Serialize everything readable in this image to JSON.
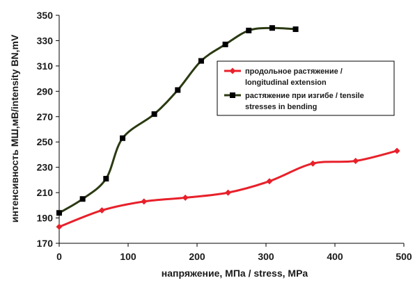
{
  "chart_data": {
    "type": "line",
    "xlabel": "напряжение, МПа / stress, MPa",
    "ylabel": "интенсивность МШ,мВ/intensity BN,mV",
    "xlim": [
      0,
      500
    ],
    "ylim": [
      170,
      350
    ],
    "xticks": [
      0,
      100,
      200,
      300,
      400,
      500
    ],
    "yticks": [
      170,
      190,
      210,
      230,
      250,
      270,
      290,
      310,
      330,
      350
    ],
    "grid": false,
    "legend_position": "right-middle",
    "series": [
      {
        "name_lines": [
          "продольное растяжение /",
          "longitudinal extension"
        ],
        "color": "#e8202a",
        "marker": "diamond",
        "x": [
          0,
          62,
          123,
          183,
          245,
          305,
          368,
          430,
          490
        ],
        "y": [
          183,
          196,
          203,
          206,
          210,
          219,
          233,
          235,
          243
        ]
      },
      {
        "name_lines": [
          "растяжение при изгибе / tensile",
          "stresses in bending"
        ],
        "color": "#2b3a12",
        "marker": "square",
        "x": [
          0,
          34,
          68,
          92,
          138,
          172,
          206,
          241,
          275,
          309,
          343
        ],
        "y": [
          194,
          205,
          221,
          253,
          272,
          291,
          314,
          327,
          338,
          340,
          339
        ]
      }
    ]
  }
}
